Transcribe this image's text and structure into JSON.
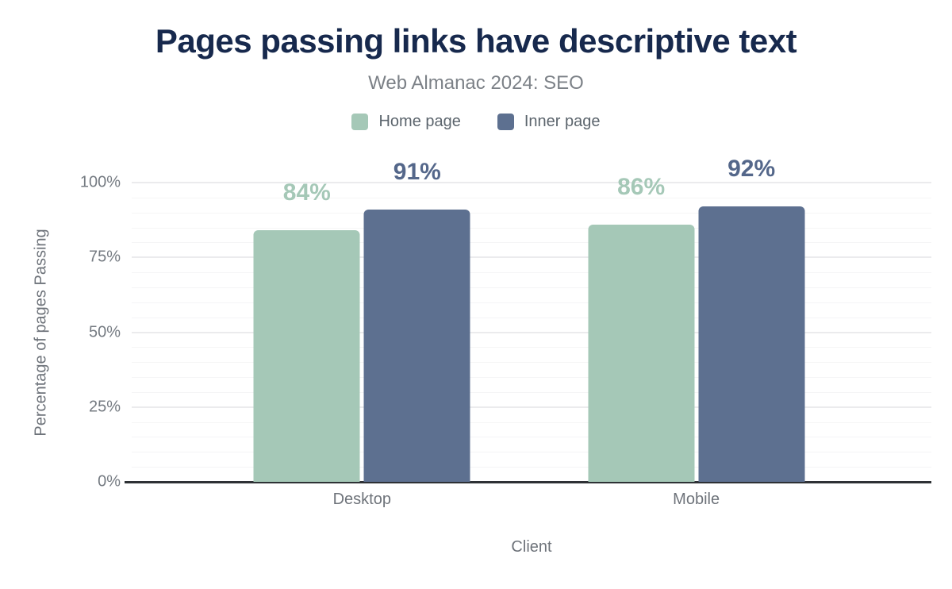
{
  "title": "Pages passing links have descriptive text",
  "subtitle": "Web Almanac 2024: SEO",
  "colors": {
    "title": "#17294d",
    "home_page": "#a5c8b7",
    "inner_page": "#5d7090",
    "inner_label": "#54678a",
    "axis_text": "#6e737a"
  },
  "chart_data": {
    "type": "bar",
    "categories": [
      "Desktop",
      "Mobile"
    ],
    "series": [
      {
        "name": "Home page",
        "color": "#a5c8b7",
        "label_color": "#a5c8b7",
        "values": [
          84,
          86
        ],
        "labels": [
          "84%",
          "86%"
        ]
      },
      {
        "name": "Inner page",
        "color": "#5d7090",
        "label_color": "#54678a",
        "values": [
          91,
          92
        ],
        "labels": [
          "91%",
          "92%"
        ]
      }
    ],
    "title": "Pages passing links have descriptive text",
    "subtitle": "Web Almanac 2024: SEO",
    "xlabel": "Client",
    "ylabel": "Percentage of pages Passing",
    "ylim": [
      0,
      100
    ],
    "yticks": [
      {
        "value": 0,
        "label": "0%"
      },
      {
        "value": 25,
        "label": "25%"
      },
      {
        "value": 50,
        "label": "50%"
      },
      {
        "value": 75,
        "label": "75%"
      },
      {
        "value": 100,
        "label": "100%"
      }
    ],
    "grid": {
      "minor_step": 5,
      "major_step": 25,
      "visible": true
    },
    "legend_position": "top"
  }
}
